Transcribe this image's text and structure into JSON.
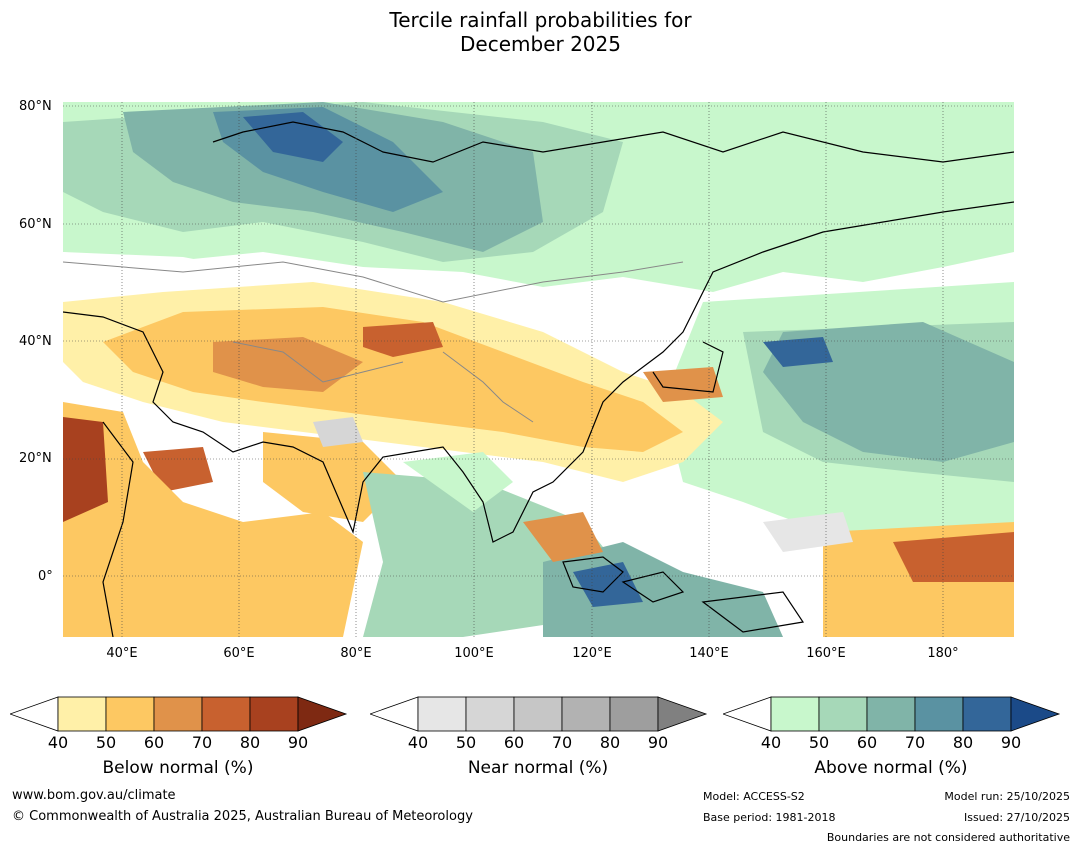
{
  "title": {
    "line1": "Tercile rainfall probabilities for",
    "line2": "December 2025"
  },
  "lat_labels": [
    "80°N",
    "60°N",
    "40°N",
    "20°N",
    "0°"
  ],
  "lon_labels": [
    "40°E",
    "60°E",
    "80°E",
    "100°E",
    "120°E",
    "140°E",
    "160°E",
    "180°"
  ],
  "colorbars": [
    {
      "name": "below",
      "title": "Below normal (%)",
      "ticks": [
        "40",
        "50",
        "60",
        "70",
        "80",
        "90"
      ],
      "colors": [
        "#fff0a8",
        "#fdc862",
        "#e0924a",
        "#c8612f",
        "#a8411f",
        "#7e2912"
      ]
    },
    {
      "name": "near",
      "title": "Near normal (%)",
      "ticks": [
        "40",
        "50",
        "60",
        "70",
        "80",
        "90"
      ],
      "colors": [
        "#e6e6e6",
        "#d6d6d6",
        "#c6c6c6",
        "#b2b2b2",
        "#9e9e9e",
        "#808080"
      ]
    },
    {
      "name": "above",
      "title": "Above normal (%)",
      "ticks": [
        "40",
        "50",
        "60",
        "70",
        "80",
        "90"
      ],
      "colors": [
        "#c8f7cc",
        "#a6d8b8",
        "#80b4a8",
        "#5a92a2",
        "#336699",
        "#1b4a88"
      ]
    }
  ],
  "footer": {
    "url": "www.bom.gov.au/climate",
    "copyright": "© Commonwealth of Australia 2025, Australian Bureau of Meteorology",
    "model": "Model: ACCESS-S2",
    "base_period": "Base period: 1981-2018",
    "model_run": "Model run: 25/10/2025",
    "issued": "Issued: 27/10/2025",
    "boundaries": "Boundaries are not considered authoritative"
  }
}
